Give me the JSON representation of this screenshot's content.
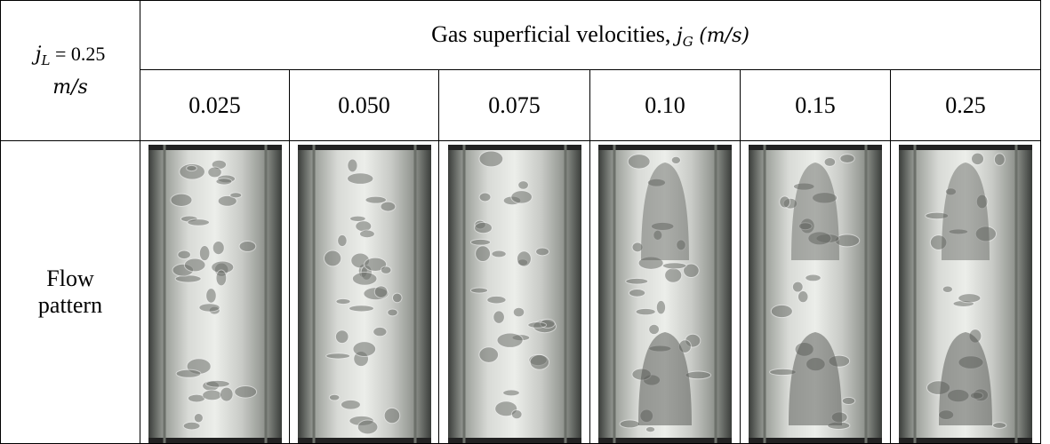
{
  "table": {
    "corner": {
      "symbol": "j",
      "subscript": "L",
      "value": "= 0.25",
      "unit": "m/s"
    },
    "header": {
      "text": "Gas superficial velocities,",
      "symbol": "j",
      "subscript": "G",
      "unit": "(m/s)"
    },
    "columns": [
      "0.025",
      "0.050",
      "0.075",
      "0.10",
      "0.15",
      "0.25"
    ],
    "row_label": "Flow pattern"
  }
}
